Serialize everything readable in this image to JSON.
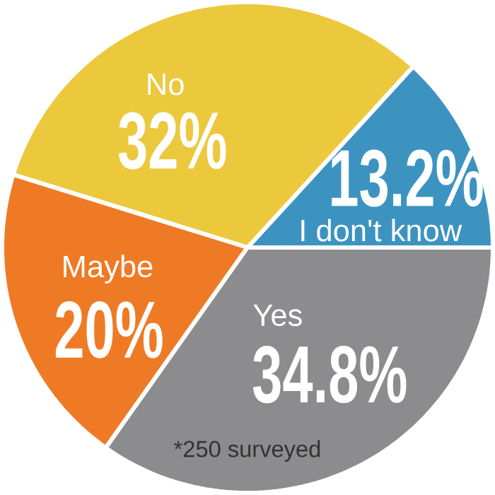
{
  "chart_data": {
    "type": "pie",
    "categories": [
      "I don't know",
      "No",
      "Maybe",
      "Yes"
    ],
    "values": [
      13.2,
      32,
      20,
      34.8
    ],
    "value_labels": [
      "13.2%",
      "32%",
      "20%",
      "34.8%"
    ],
    "colors": [
      "#3d93c0",
      "#ecc83c",
      "#ef7a25",
      "#8c8c8e"
    ],
    "annotations": [
      "*250 surveyed"
    ]
  }
}
